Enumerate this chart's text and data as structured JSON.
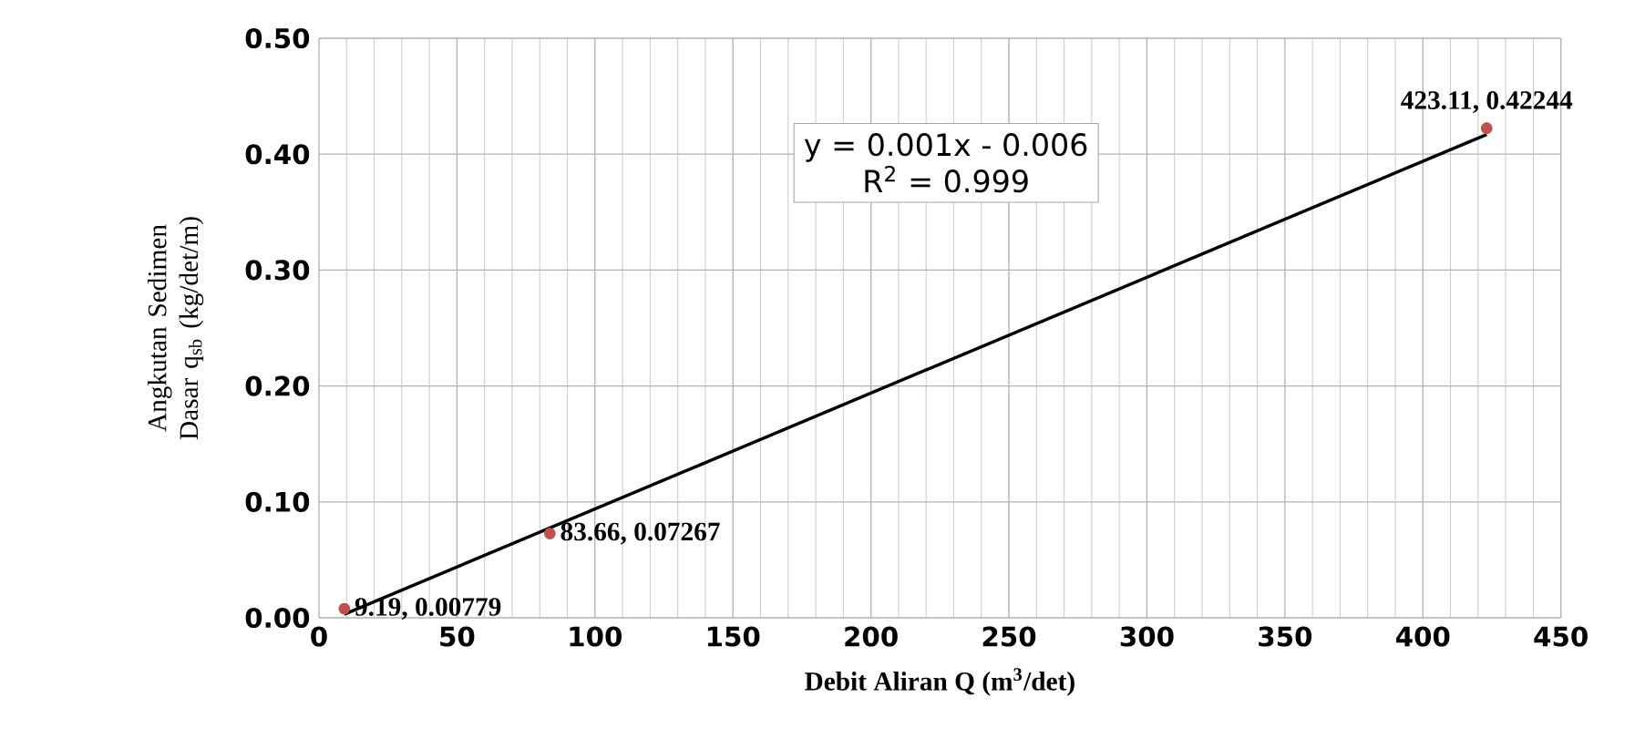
{
  "chart_data": {
    "type": "scatter",
    "xlabel": "Debit Aliran Q (m$^{3}$/det)",
    "ylabel": "Angkutan Sedimen Dasar q$_{sb}$ (kg/det/m)",
    "xlim": [
      0,
      450
    ],
    "xticks": [
      0,
      50,
      100,
      150,
      200,
      250,
      300,
      350,
      400,
      450
    ],
    "ylim": [
      0,
      0.5
    ],
    "yticks": [
      {
        "value": 0,
        "label": "0.00"
      },
      {
        "value": 0.1,
        "label": "0.10"
      },
      {
        "value": 0.2,
        "label": "0.20"
      },
      {
        "value": 0.3,
        "label": "0.30"
      },
      {
        "value": 0.4,
        "label": "0.40"
      },
      {
        "value": 0.5,
        "label": "0.50"
      }
    ],
    "grid": true,
    "series": [
      {
        "type": "scatter",
        "marker": "circle",
        "color": "#c0504d",
        "x": [
          9.19,
          83.66,
          423.11
        ],
        "values": [
          0.00779,
          0.07267,
          0.42244
        ],
        "value_labels": [
          "9.19, 0.00779",
          "83.66, 0.07267",
          "423.11, 0.42244"
        ]
      },
      {
        "type": "line",
        "marker": "none",
        "color": "#000000",
        "x": [
          9.19,
          423.11
        ],
        "values": [
          0.003,
          0.417
        ]
      }
    ],
    "annotations": [
      "y = 0.001x - 0.006",
      "R$^{2}$ = 0.999"
    ]
  }
}
